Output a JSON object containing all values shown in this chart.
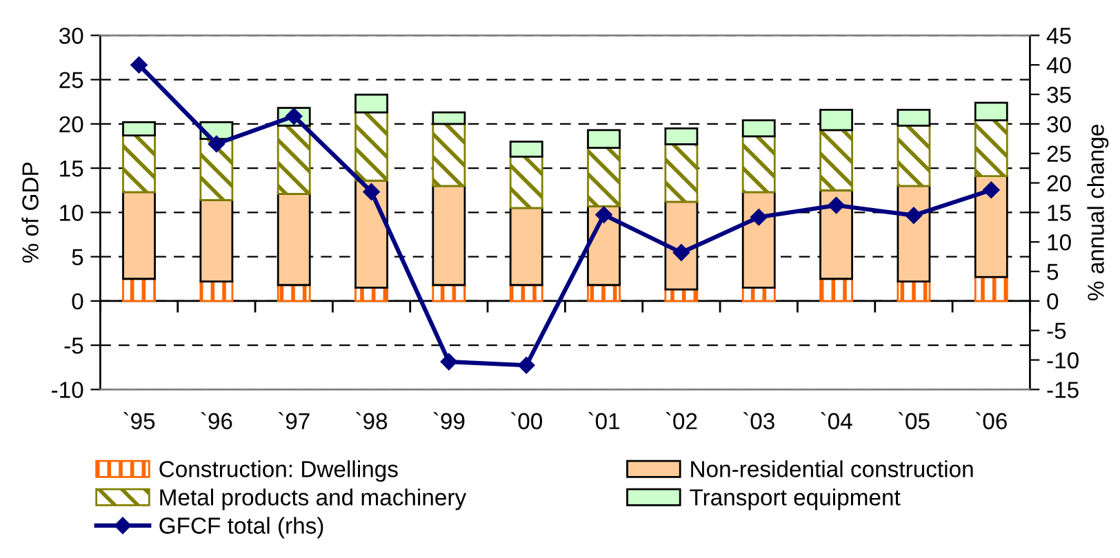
{
  "chart_data": {
    "type": "bar",
    "stacked": true,
    "ylabel": "% of GDP",
    "y2label": "% annual change",
    "categories": [
      "`95",
      "`96",
      "`97",
      "`98",
      "`99",
      "`00",
      "`01",
      "`02",
      "`03",
      "`04",
      "`05",
      "`06"
    ],
    "series": [
      {
        "name": "Construction: Dwellings",
        "color": "#ff6600",
        "values": [
          2.5,
          2.2,
          1.8,
          1.5,
          1.8,
          1.8,
          1.8,
          1.3,
          1.5,
          2.5,
          2.2,
          2.7
        ]
      },
      {
        "name": "Non-residential construction",
        "color": "#ffcc99",
        "values": [
          9.8,
          9.2,
          10.3,
          12.1,
          11.2,
          8.7,
          8.9,
          9.9,
          10.8,
          10.0,
          10.8,
          11.4
        ]
      },
      {
        "name": "Metal products and machinery",
        "color": "#808000",
        "values": [
          6.4,
          6.9,
          7.7,
          7.7,
          7.0,
          5.8,
          6.6,
          6.5,
          6.3,
          6.8,
          6.8,
          6.3
        ]
      },
      {
        "name": "Transport equipment",
        "color": "#ccffcc",
        "values": [
          1.5,
          1.9,
          2.0,
          2.0,
          1.3,
          1.7,
          2.0,
          1.8,
          1.8,
          2.3,
          1.8,
          2.0
        ]
      },
      {
        "name": "GFCF total (rhs)",
        "type": "line",
        "axis": "y2",
        "color": "#000080",
        "values": [
          40.0,
          26.6,
          31.3,
          18.5,
          -10.3,
          -10.9,
          14.6,
          8.2,
          14.2,
          16.2,
          14.5,
          18.8
        ]
      }
    ],
    "ylim": [
      -10,
      30
    ],
    "yticks": [
      -10,
      -5,
      0,
      5,
      10,
      15,
      20,
      25,
      30
    ],
    "y2lim": [
      -15,
      45
    ],
    "y2ticks": [
      -15,
      -10,
      -5,
      0,
      5,
      10,
      15,
      20,
      25,
      30,
      35,
      40,
      45
    ],
    "grid": "y",
    "legend": "bottom",
    "marker": "diamond",
    "line_style": "solid"
  }
}
